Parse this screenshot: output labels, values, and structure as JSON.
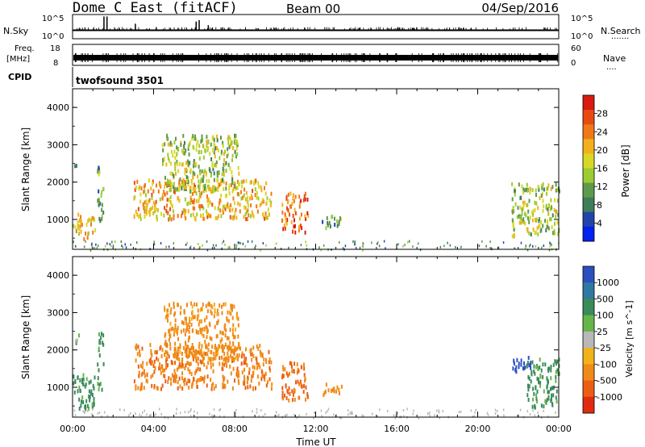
{
  "header": {
    "station": "Dome C East (fitACF)",
    "beam": "Beam 00",
    "date": "04/Sep/2016"
  },
  "top_panels": {
    "nsky": {
      "left_label": "N.Sky",
      "right_label": "N.Search",
      "right_dots": ".......",
      "left_ticks": [
        "10^5",
        "10^0"
      ],
      "right_ticks": [
        "10^5",
        "10^0"
      ],
      "spikes": [
        {
          "x": 1.55,
          "h": 0.95
        },
        {
          "x": 1.7,
          "h": 0.95
        },
        {
          "x": 3.1,
          "h": 0.45
        },
        {
          "x": 6.1,
          "h": 0.6
        },
        {
          "x": 6.25,
          "h": 0.7
        },
        {
          "x": 6.7,
          "h": 0.35
        }
      ]
    },
    "freq": {
      "left_label_1": "Freq.",
      "left_label_2": "[MHz]",
      "right_label": "Nave",
      "right_dots": "....",
      "left_ticks": [
        "18",
        "8"
      ],
      "right_ticks": [
        "60",
        "0"
      ]
    },
    "cpid": {
      "label": "CPID",
      "value": "twofsound 3501"
    }
  },
  "axes": {
    "ylabel": "Slant Range [km]",
    "y_ticks": [
      "1000",
      "2000",
      "3000",
      "4000"
    ],
    "x_ticks": [
      "00:00",
      "04:00",
      "08:00",
      "12:00",
      "16:00",
      "20:00",
      "00:00"
    ],
    "xlabel": "Time UT"
  },
  "power_colorbar": {
    "label": "Power [dB]",
    "ticks": [
      "4",
      "8",
      "12",
      "16",
      "20",
      "24",
      "28"
    ],
    "colors": [
      "#0022ee",
      "#2244aa",
      "#3d7d5a",
      "#5f9a4a",
      "#9bcc33",
      "#d8d824",
      "#f3b01d",
      "#f07817",
      "#e84a12",
      "#d81a10"
    ]
  },
  "velocity_colorbar": {
    "label": "Velocity [m s^-1]",
    "ticks": [
      "1000",
      "500",
      "100",
      "25",
      "-25",
      "-100",
      "-500",
      "-1000"
    ],
    "colors": [
      "#2a4fbf",
      "#2f78a0",
      "#3a8a5a",
      "#67b548",
      "#b8b8b8",
      "#f2b21c",
      "#f18a16",
      "#ec5e14",
      "#e22a10"
    ]
  },
  "chart_data": [
    {
      "type": "heatmap",
      "title": "Power [dB]",
      "xlabel": "Time UT",
      "ylabel": "Slant Range [km]",
      "xlim": [
        0,
        24
      ],
      "ylim": [
        200,
        4500
      ],
      "x_unit": "hours UT",
      "clim": [
        0,
        30
      ],
      "blobs": [
        {
          "t0": 0.0,
          "t1": 1.1,
          "r0": 520,
          "r1": 1200,
          "v": 18
        },
        {
          "t0": 0.0,
          "t1": 0.3,
          "r0": 2200,
          "r1": 2500,
          "v": 12
        },
        {
          "t0": 1.2,
          "t1": 1.5,
          "r0": 900,
          "r1": 2500,
          "v": 10
        },
        {
          "t0": 3.0,
          "t1": 9.8,
          "r0": 1050,
          "r1": 2100,
          "v": 19
        },
        {
          "t0": 4.4,
          "t1": 8.2,
          "r0": 1800,
          "r1": 3300,
          "v": 14
        },
        {
          "t0": 10.3,
          "t1": 11.6,
          "r0": 700,
          "r1": 1750,
          "v": 24
        },
        {
          "t0": 12.3,
          "t1": 13.3,
          "r0": 800,
          "r1": 1150,
          "v": 10
        },
        {
          "t0": 21.6,
          "t1": 24.0,
          "r0": 600,
          "r1": 2000,
          "v": 14
        }
      ]
    },
    {
      "type": "heatmap",
      "title": "Velocity [m s^-1]",
      "xlabel": "Time UT",
      "ylabel": "Slant Range [km]",
      "xlim": [
        0,
        24
      ],
      "ylim": [
        200,
        4500
      ],
      "x_unit": "hours UT",
      "blobs": [
        {
          "t0": 0.0,
          "t1": 1.1,
          "r0": 450,
          "r1": 1400,
          "v": 150
        },
        {
          "t0": 0.0,
          "t1": 0.3,
          "r0": 2200,
          "r1": 2500,
          "v": 100
        },
        {
          "t0": 1.2,
          "t1": 1.5,
          "r0": 900,
          "r1": 2500,
          "v": 150
        },
        {
          "t0": 3.0,
          "t1": 9.8,
          "r0": 1000,
          "r1": 2200,
          "v": -300
        },
        {
          "t0": 4.5,
          "t1": 8.2,
          "r0": 1800,
          "r1": 3300,
          "v": -200
        },
        {
          "t0": 10.3,
          "t1": 11.6,
          "r0": 700,
          "r1": 1700,
          "v": -400
        },
        {
          "t0": 12.3,
          "t1": 13.3,
          "r0": 800,
          "r1": 1150,
          "v": -250
        },
        {
          "t0": 21.7,
          "t1": 22.6,
          "r0": 1450,
          "r1": 1900,
          "v": 900
        },
        {
          "t0": 22.4,
          "t1": 24.0,
          "r0": 500,
          "r1": 1800,
          "v": 150
        }
      ]
    }
  ]
}
